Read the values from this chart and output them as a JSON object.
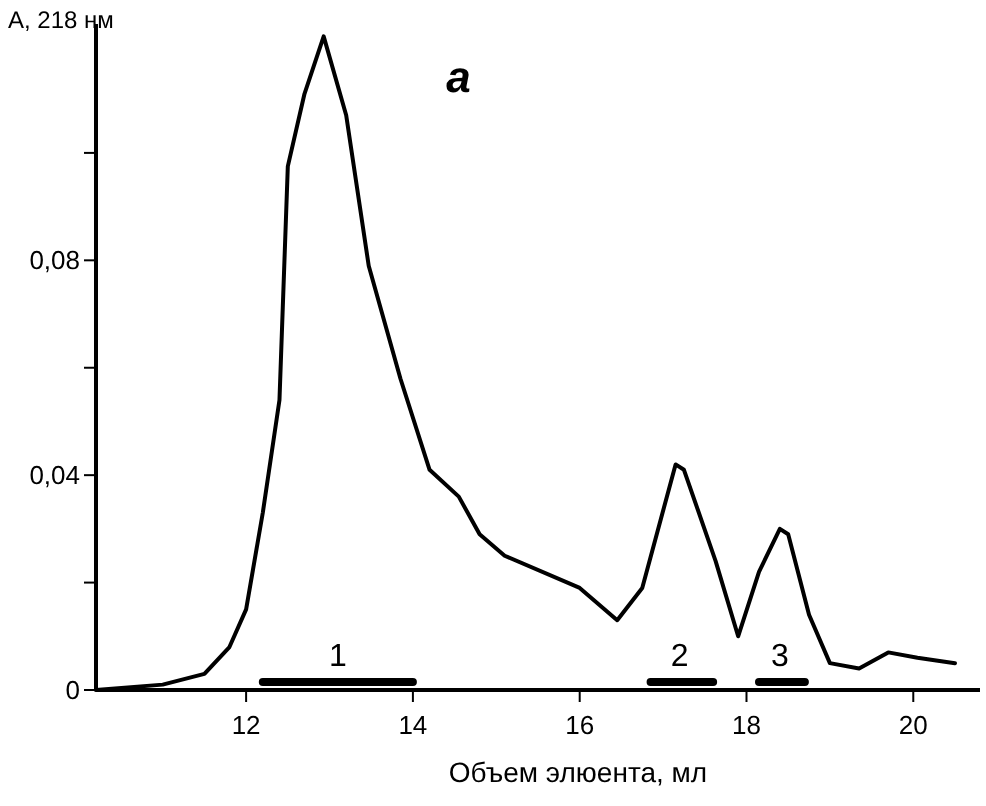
{
  "chart_data": {
    "type": "line",
    "ylabel": "A, 218 нм",
    "xlabel": "Объем элюента, мл",
    "annotations": [
      "а",
      {
        "text": "1",
        "x": 13.1,
        "y": 0.0015
      },
      {
        "text": "2",
        "x": 17.2,
        "y": 0.0015
      },
      {
        "text": "3",
        "x": 18.4,
        "y": 0.0015
      }
    ],
    "x": [
      10.2,
      11.0,
      11.5,
      11.8,
      12.0,
      12.2,
      12.4,
      12.5,
      12.7,
      12.93,
      13.2,
      13.47,
      13.85,
      14.2,
      14.55,
      14.8,
      15.1,
      16.0,
      16.45,
      16.75,
      17.15,
      17.25,
      17.63,
      17.9,
      18.15,
      18.4,
      18.5,
      18.75,
      19.0,
      19.35,
      19.7,
      20.05,
      20.5
    ],
    "series": [
      {
        "color": "#000000",
        "values": [
          0,
          0.001,
          0.003,
          0.008,
          0.015,
          0.033,
          0.054,
          0.0975,
          0.111,
          0.1217,
          0.107,
          0.079,
          0.058,
          0.041,
          0.036,
          0.029,
          0.025,
          0.019,
          0.013,
          0.019,
          0.042,
          0.041,
          0.024,
          0.01,
          0.022,
          0.03,
          0.029,
          0.014,
          0.005,
          0.004,
          0.007,
          0.006,
          0.005
        ]
      },
      {
        "color": "#000000",
        "x": [
          12.2,
          14.0
        ],
        "values": [
          0.0015,
          0.0015
        ]
      },
      {
        "color": "#000000",
        "x": [
          16.85,
          17.6
        ],
        "values": [
          0.0015,
          0.0015
        ]
      },
      {
        "color": "#000000",
        "x": [
          18.15,
          18.7
        ],
        "values": [
          0.0015,
          0.0015
        ]
      }
    ],
    "xlim": [
      10.2,
      20.8
    ],
    "xticks": [
      12,
      14,
      16,
      18,
      20
    ],
    "ylim": [
      0,
      0.124
    ],
    "yticks": [
      0,
      {
        "value": 0.02,
        "label": null
      },
      {
        "value": 0.04,
        "label": "0,04"
      },
      {
        "value": 0.06,
        "label": null
      },
      {
        "value": 0.08,
        "label": "0,08"
      },
      {
        "value": 0.1,
        "label": null
      }
    ],
    "grid": false,
    "marker": "none",
    "line_style": "solid"
  }
}
